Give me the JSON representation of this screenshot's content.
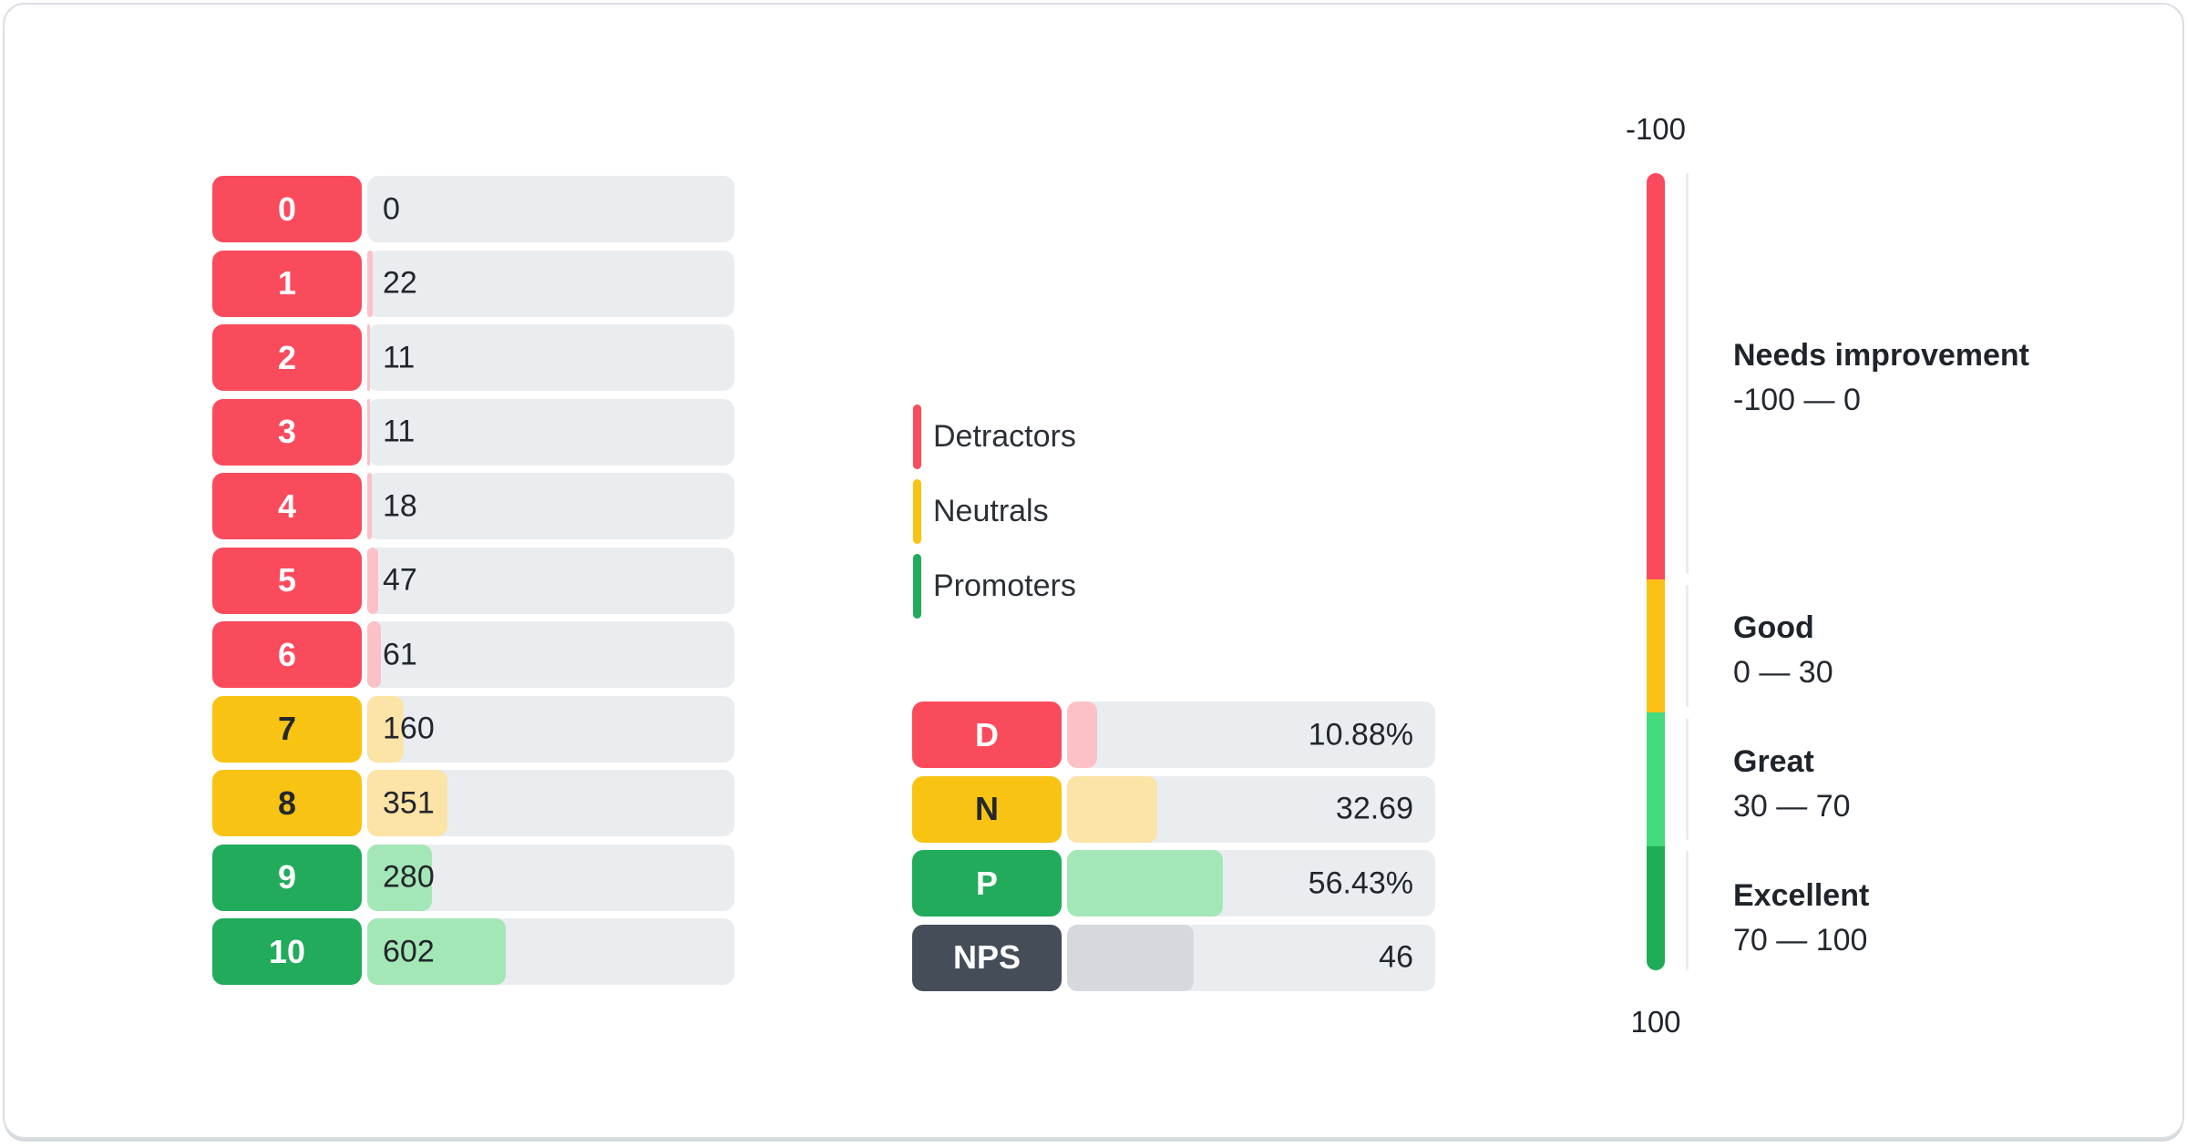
{
  "colors": {
    "track": "#EAEDF0",
    "card_border": "#DBDFE4",
    "detractor": "#FA4B5D",
    "neutral": "#F8C313",
    "promoter": "#21AB5B",
    "nps_chip": "#454D58",
    "axis_line": "#E9ECF0"
  },
  "legend": {
    "items": [
      {
        "label": "Detractors",
        "color": "#FA4B5D"
      },
      {
        "label": "Neutrals",
        "color": "#F8C313"
      },
      {
        "label": "Promoters",
        "color": "#21AB5B"
      }
    ]
  },
  "chart_data": [
    {
      "id": "score_distribution",
      "type": "bar",
      "orientation": "horizontal",
      "xlabel": "",
      "ylabel": "",
      "xmax": 1600,
      "rows": [
        {
          "score": "0",
          "count": 0,
          "count_label": "0",
          "group": "Detractors",
          "chip_color": "#FA4B5D",
          "chip_text_color": "#FFFFFF",
          "fill_color": "#FBC1C7"
        },
        {
          "score": "1",
          "count": 22,
          "count_label": "22",
          "group": "Detractors",
          "chip_color": "#FA4B5D",
          "chip_text_color": "#FFFFFF",
          "fill_color": "#FBC1C7"
        },
        {
          "score": "2",
          "count": 11,
          "count_label": "11",
          "group": "Detractors",
          "chip_color": "#FA4B5D",
          "chip_text_color": "#FFFFFF",
          "fill_color": "#FBC1C7"
        },
        {
          "score": "3",
          "count": 11,
          "count_label": "11",
          "group": "Detractors",
          "chip_color": "#FA4B5D",
          "chip_text_color": "#FFFFFF",
          "fill_color": "#FBC1C7"
        },
        {
          "score": "4",
          "count": 18,
          "count_label": "18",
          "group": "Detractors",
          "chip_color": "#FA4B5D",
          "chip_text_color": "#FFFFFF",
          "fill_color": "#FBC1C7"
        },
        {
          "score": "5",
          "count": 47,
          "count_label": "47",
          "group": "Detractors",
          "chip_color": "#FA4B5D",
          "chip_text_color": "#FFFFFF",
          "fill_color": "#FBC1C7"
        },
        {
          "score": "6",
          "count": 61,
          "count_label": "61",
          "group": "Detractors",
          "chip_color": "#FA4B5D",
          "chip_text_color": "#FFFFFF",
          "fill_color": "#FBC1C7"
        },
        {
          "score": "7",
          "count": 160,
          "count_label": "160",
          "group": "Neutrals",
          "chip_color": "#F8C313",
          "chip_text_color": "#24282E",
          "fill_color": "#FCE3A6"
        },
        {
          "score": "8",
          "count": 351,
          "count_label": "351",
          "group": "Neutrals",
          "chip_color": "#F8C313",
          "chip_text_color": "#24282E",
          "fill_color": "#FCE3A6"
        },
        {
          "score": "9",
          "count": 280,
          "count_label": "280",
          "group": "Promoters",
          "chip_color": "#21AB5B",
          "chip_text_color": "#FFFFFF",
          "fill_color": "#A4E7B6"
        },
        {
          "score": "10",
          "count": 602,
          "count_label": "602",
          "group": "Promoters",
          "chip_color": "#21AB5B",
          "chip_text_color": "#FFFFFF",
          "fill_color": "#A4E7B6"
        }
      ]
    },
    {
      "id": "summary",
      "type": "bar",
      "orientation": "horizontal",
      "xmax": 133.33,
      "rows": [
        {
          "label": "D",
          "value": 10.88,
          "display": "10.88%",
          "chip_color": "#FA4B5D",
          "chip_text_color": "#FFFFFF",
          "fill_color": "#FBC1C7"
        },
        {
          "label": "N",
          "value": 32.69,
          "display": "32.69",
          "chip_color": "#F8C313",
          "chip_text_color": "#24282E",
          "fill_color": "#FCE3A6"
        },
        {
          "label": "P",
          "value": 56.43,
          "display": "56.43%",
          "chip_color": "#21AB5B",
          "chip_text_color": "#FFFFFF",
          "fill_color": "#A4E7B6"
        },
        {
          "label": "NPS",
          "value": 46,
          "display": "46",
          "chip_color": "#454D58",
          "chip_text_color": "#FFFFFF",
          "fill_color": "#D5D8DC"
        }
      ]
    },
    {
      "id": "nps_gauge",
      "type": "gauge",
      "orientation": "vertical",
      "domain": [
        -100,
        100
      ],
      "axis_top_label": "-100",
      "axis_bottom_label": "100",
      "zones": [
        {
          "name": "Needs improvement",
          "range_label": "-100 — 0",
          "from": -100,
          "to": 0,
          "color": "#FB4A5D",
          "height_pct": 51.0
        },
        {
          "name": "Good",
          "range_label": "0 — 30",
          "from": 0,
          "to": 30,
          "color": "#FBC117",
          "height_pct": 16.7
        },
        {
          "name": "Great",
          "range_label": "30 — 70",
          "from": 30,
          "to": 70,
          "color": "#42DB7D",
          "height_pct": 16.7
        },
        {
          "name": "Excellent",
          "range_label": "70 — 100",
          "from": 70,
          "to": 100,
          "color": "#1FAC57",
          "height_pct": 15.6
        }
      ]
    }
  ]
}
